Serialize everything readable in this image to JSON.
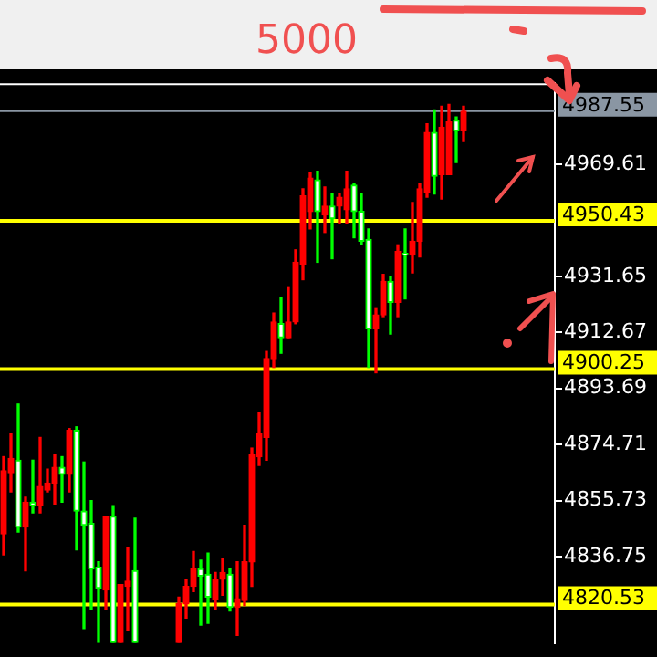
{
  "chart_data": {
    "type": "candlestick",
    "annotations": [
      "5000"
    ],
    "categories": [
      null,
      null,
      null,
      null,
      null,
      null,
      null,
      null,
      null,
      null,
      null,
      null,
      null,
      null,
      null,
      null,
      null,
      null,
      null,
      null,
      null,
      null,
      null,
      null,
      null,
      null,
      null,
      null,
      null,
      null,
      null,
      null,
      null,
      null,
      null,
      null,
      null,
      null,
      null,
      null,
      null,
      null,
      null,
      null,
      null,
      null,
      null,
      null,
      null,
      null,
      null,
      null,
      null,
      null,
      null,
      null,
      null,
      null,
      null,
      null,
      null,
      null,
      null,
      null,
      null,
      null,
      null,
      null,
      null,
      null,
      null,
      null,
      null,
      null,
      null,
      null
    ],
    "ohlc": [
      [
        4844.5,
        4870.6,
        4837.4,
        4865.8
      ],
      [
        4865.2,
        4878.3,
        4858.7,
        4870.0
      ],
      [
        4869.4,
        4888.4,
        4845.1,
        4846.8
      ],
      [
        4846.8,
        4856.9,
        4832.0,
        4855.2
      ],
      [
        4855.2,
        4869.4,
        4851.6,
        4854.0
      ],
      [
        4854.0,
        4877.1,
        4851.6,
        4860.5
      ],
      [
        4859.3,
        4866.4,
        4858.7,
        4861.7
      ],
      [
        4861.7,
        4871.2,
        4854.6,
        4867.0
      ],
      [
        4867.0,
        4870.6,
        4855.2,
        4864.6
      ],
      [
        4864.6,
        4880.1,
        4858.7,
        4879.5
      ],
      [
        4879.5,
        4880.7,
        4839.1,
        4852.2
      ],
      [
        4852.2,
        4868.8,
        4812.4,
        4847.4
      ],
      [
        4848.0,
        4855.7,
        4819.0,
        4832.6
      ],
      [
        4833.2,
        4835.0,
        4807.7,
        4826.1
      ],
      [
        4825.5,
        4850.4,
        4819.0,
        4850.4
      ],
      [
        4850.4,
        4854.0,
        4807.7,
        4807.7
      ],
      [
        4807.7,
        4827.3,
        4807.7,
        4827.3
      ],
      [
        4826.7,
        4839.7,
        4811.9,
        4828.5
      ],
      [
        4832.0,
        4849.8,
        4807.7,
        4807.7
      ],
      null,
      null,
      null,
      null,
      null,
      [
        4807.7,
        4823.1,
        4807.7,
        4820.8
      ],
      [
        4820.8,
        4829.1,
        4816.0,
        4826.7
      ],
      [
        4826.7,
        4838.5,
        4824.9,
        4832.6
      ],
      [
        4832.6,
        4835.6,
        4813.6,
        4830.2
      ],
      [
        4830.8,
        4838.0,
        4814.2,
        4823.1
      ],
      [
        4822.5,
        4831.4,
        4819.0,
        4829.1
      ],
      [
        4829.1,
        4836.2,
        4823.7,
        4831.4
      ],
      [
        4830.8,
        4832.6,
        4818.4,
        4819.6
      ],
      [
        4819.6,
        4835.0,
        4810.1,
        4822.5
      ],
      [
        4821.9,
        4847.4,
        4820.2,
        4835.0
      ],
      [
        4835.0,
        4873.5,
        4826.7,
        4871.2
      ],
      [
        4870.6,
        4885.4,
        4867.6,
        4878.3
      ],
      [
        4877.1,
        4906.2,
        4869.4,
        4903.8
      ],
      [
        4903.8,
        4919.2,
        4900.8,
        4916.2
      ],
      [
        4915.6,
        4924.5,
        4905.6,
        4910.9
      ],
      [
        4910.9,
        4928.1,
        4910.9,
        4916.2
      ],
      [
        4916.2,
        4940.6,
        4915.6,
        4936.4
      ],
      [
        4935.8,
        4961.3,
        4930.5,
        4958.9
      ],
      [
        4953.6,
        4966.7,
        4947.7,
        4964.9
      ],
      [
        4964.3,
        4967.2,
        4936.4,
        4953.6
      ],
      [
        4952.4,
        4961.9,
        4946.5,
        4955.4
      ],
      [
        4955.4,
        4959.5,
        4937.6,
        4951.2
      ],
      [
        4955.4,
        4959.5,
        4949.5,
        4958.4
      ],
      [
        4954.2,
        4967.2,
        4949.5,
        4961.3
      ],
      [
        4962.5,
        4963.1,
        4944.7,
        4953.6
      ],
      [
        4953.6,
        4959.5,
        4942.3,
        4943.5
      ],
      [
        4944.1,
        4947.7,
        4900.8,
        4913.9
      ],
      [
        4913.9,
        4921.0,
        4899.0,
        4918.6
      ],
      [
        4918.6,
        4932.3,
        4918.0,
        4929.9
      ],
      [
        4929.9,
        4931.7,
        4912.1,
        4922.8
      ],
      [
        4922.8,
        4942.3,
        4918.0,
        4940.0
      ],
      [
        4939.4,
        4947.7,
        4924.0,
        4938.8
      ],
      [
        4938.8,
        4956.6,
        4932.8,
        4943.5
      ],
      [
        4943.5,
        4963.1,
        4938.2,
        4961.3
      ],
      [
        4960.1,
        4983.3,
        4958.4,
        4980.3
      ],
      [
        4980.3,
        4988.0,
        4959.5,
        4965.5
      ],
      [
        4966.1,
        4989.2,
        4957.8,
        4982.1
      ],
      [
        4966.1,
        4989.8,
        4966.1,
        4983.9
      ],
      [
        4984.4,
        4985.6,
        4970.2,
        4980.9
      ],
      [
        4980.9,
        4989.2,
        4977.3,
        4987.55
      ],
      null,
      null,
      null,
      null,
      null,
      null,
      null,
      null,
      null,
      null,
      null,
      null
    ],
    "ylim": [
      4807.5,
      4997
    ],
    "yticks": [
      4969.61,
      4931.65,
      4912.67,
      4893.69,
      4874.71,
      4855.73,
      4836.75
    ],
    "ref_lines": [
      {
        "axis": "y",
        "value": 4987.55,
        "label": "4987.55",
        "color": "#8a96a3"
      },
      {
        "axis": "y",
        "value": 4950.43,
        "label": "4950.43",
        "color": "#ffff00"
      },
      {
        "axis": "y",
        "value": 4900.25,
        "label": "4900.25",
        "color": "#ffff00"
      },
      {
        "axis": "y",
        "value": 4820.53,
        "label": "4820.53",
        "color": "#ffff00"
      }
    ],
    "grid": false,
    "legend": false,
    "tick_labels": "y"
  }
}
